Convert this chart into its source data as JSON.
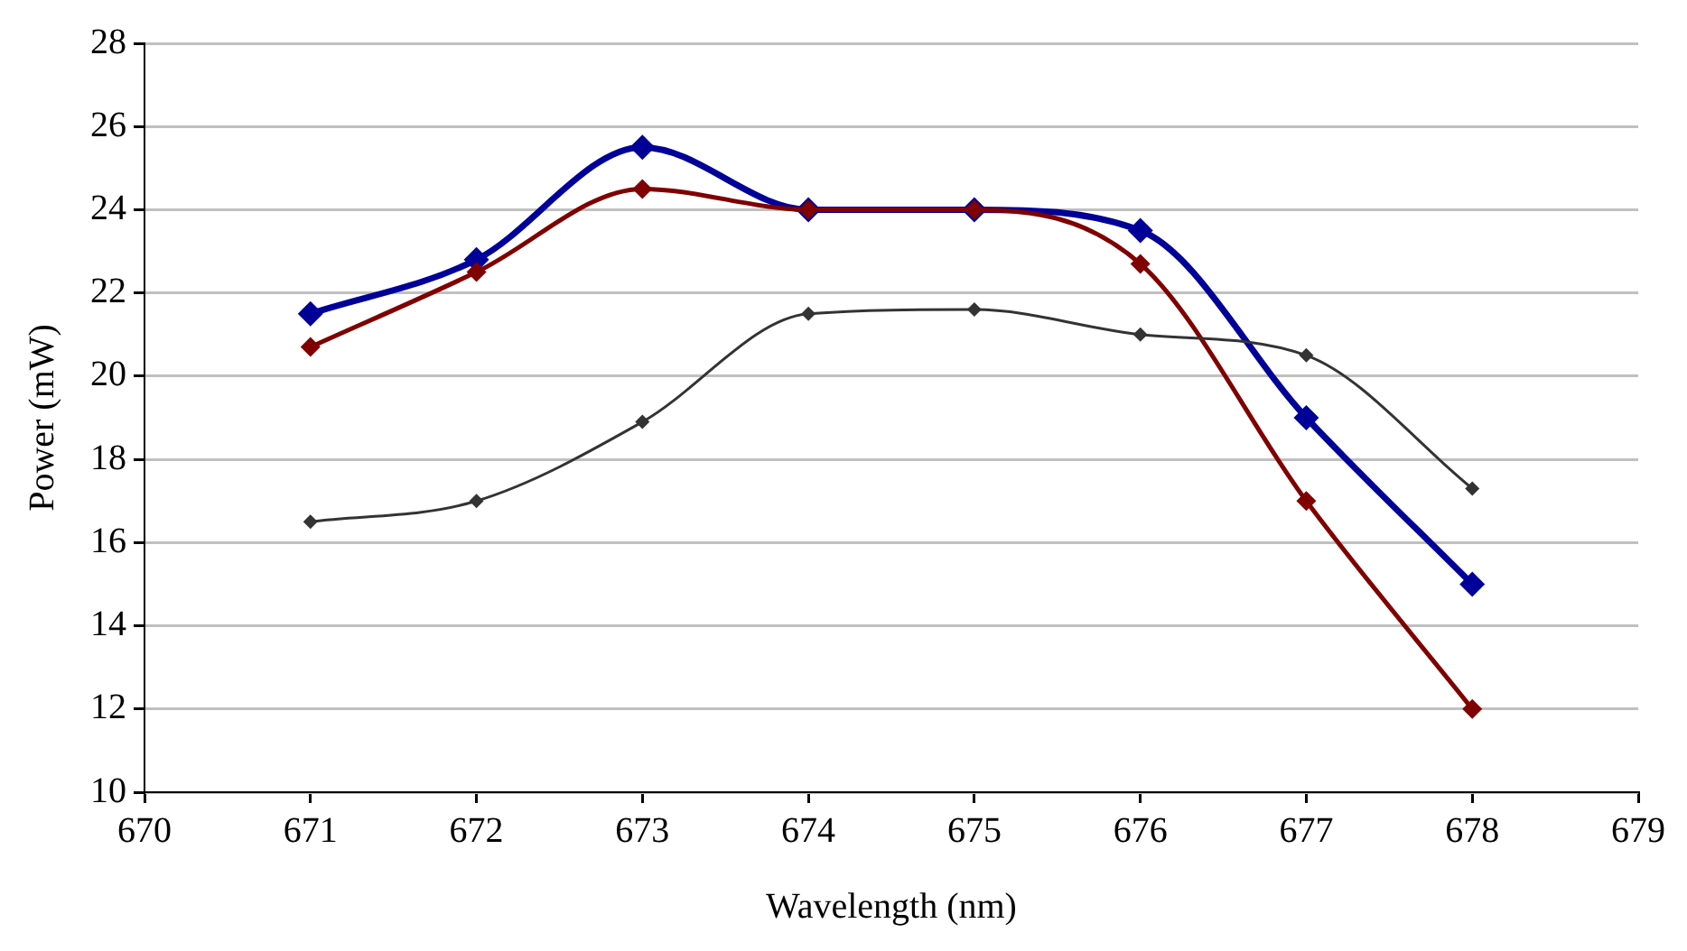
{
  "chart_data": {
    "type": "line",
    "xlabel": "Wavelength (nm)",
    "ylabel": "Power (mW)",
    "x": [
      671,
      672,
      673,
      674,
      675,
      676,
      677,
      678
    ],
    "series": [
      {
        "color": "#000099",
        "values": [
          21.5,
          22.8,
          25.5,
          24.0,
          24.0,
          23.5,
          19.0,
          15.0
        ]
      },
      {
        "color": "#800000",
        "values": [
          20.7,
          22.5,
          24.5,
          24.0,
          24.0,
          22.7,
          17.0,
          12.0
        ]
      },
      {
        "color": "#333333",
        "values": [
          16.5,
          17.0,
          18.9,
          21.5,
          21.6,
          21.0,
          20.5,
          17.3
        ]
      }
    ],
    "xlim": [
      670,
      679
    ],
    "xticks": [
      670,
      671,
      672,
      673,
      674,
      675,
      676,
      677,
      678,
      679
    ],
    "ylim": [
      10,
      28
    ],
    "yticks": [
      10,
      12,
      14,
      16,
      18,
      20,
      22,
      24,
      26,
      28
    ],
    "grid": "y",
    "legend": false,
    "marker": "diamond",
    "line_style": "solid"
  }
}
